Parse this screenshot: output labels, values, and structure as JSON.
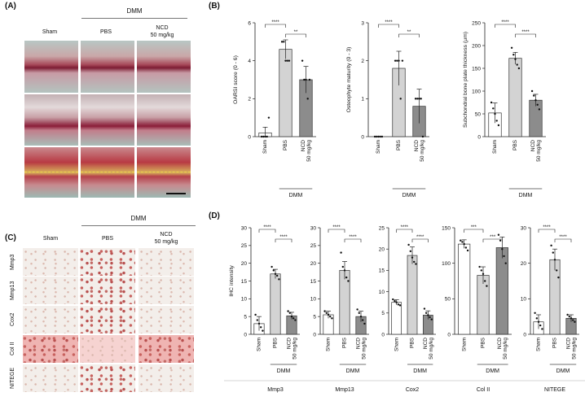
{
  "panels": {
    "A": "(A)",
    "B": "(B)",
    "C": "(C)",
    "D": "(D)"
  },
  "panelA": {
    "group_header": "DMM",
    "columns": [
      "Sham",
      "PBS",
      "NCD\n50 mg/kg"
    ]
  },
  "panelC": {
    "group_header": "DMM",
    "columns": [
      "Sham",
      "PBS",
      "NCD\n50 mg/kg"
    ],
    "rows": [
      "Mmp3",
      "Mmp13",
      "Cox2",
      "Col II",
      "NITEGE"
    ]
  },
  "colors": {
    "sham": "#ffffff",
    "pbs": "#d3d3d3",
    "ncd": "#8c8c8c",
    "stroke": "#333333"
  },
  "chart_data": [
    {
      "id": "oarsi",
      "type": "bar",
      "panel": "B",
      "ylabel": "OARSI score (0 - 6)",
      "ylim": [
        0,
        6
      ],
      "yticks": [
        0,
        2,
        4,
        6
      ],
      "categories": [
        "Sham",
        "PBS",
        "NCD\n50 mg/kg"
      ],
      "values": [
        0.2,
        4.6,
        3.0
      ],
      "errors": [
        0.3,
        0.5,
        0.7
      ],
      "points": [
        [
          0,
          0,
          0,
          0,
          1
        ],
        [
          5,
          5,
          4,
          4,
          4
        ],
        [
          4,
          3,
          3,
          2,
          3
        ]
      ],
      "significance": [
        {
          "from": 0,
          "to": 1,
          "label": "****"
        },
        {
          "from": 1,
          "to": 2,
          "label": "**"
        }
      ],
      "group_label": "DMM"
    },
    {
      "id": "osteophyte",
      "type": "bar",
      "panel": "B",
      "ylabel": "Osteophyte maturity (0 - 3)",
      "ylim": [
        0,
        3
      ],
      "yticks": [
        0,
        1,
        2,
        3
      ],
      "categories": [
        "Sham",
        "PBS",
        "NCD\n50 mg/kg"
      ],
      "values": [
        0,
        1.8,
        0.8
      ],
      "errors": [
        0,
        0.45,
        0.45
      ],
      "points": [
        [
          0,
          0,
          0,
          0,
          0
        ],
        [
          2,
          2,
          2,
          1,
          2
        ],
        [
          1,
          1,
          1,
          1,
          0
        ]
      ],
      "significance": [
        {
          "from": 0,
          "to": 1,
          "label": "****"
        },
        {
          "from": 1,
          "to": 2,
          "label": "**"
        }
      ],
      "group_label": "DMM"
    },
    {
      "id": "subchondral",
      "type": "bar",
      "panel": "B",
      "ylabel": "Subchondral bone plate thickness (μm)",
      "ylim": [
        0,
        250
      ],
      "yticks": [
        0,
        50,
        100,
        150,
        200,
        250
      ],
      "categories": [
        "Sham",
        "PBS",
        "NCD\n50 mg/kg"
      ],
      "values": [
        52,
        172,
        80
      ],
      "errors": [
        22,
        13,
        13
      ],
      "points": [
        [
          75,
          62,
          50,
          35,
          25
        ],
        [
          195,
          180,
          170,
          158,
          150
        ],
        [
          100,
          90,
          80,
          70,
          60
        ]
      ],
      "significance": [
        {
          "from": 0,
          "to": 1,
          "label": "****"
        },
        {
          "from": 1,
          "to": 2,
          "label": "****"
        }
      ],
      "group_label": "DMM"
    },
    {
      "id": "mmp3",
      "type": "bar",
      "panel": "D",
      "ylabel": "IHC intensity",
      "ylim": [
        0,
        30
      ],
      "yticks": [
        0,
        5,
        10,
        15,
        20,
        25,
        30
      ],
      "categories": [
        "Sham",
        "PBS",
        "NCD\n50 mg/kg"
      ],
      "values": [
        3,
        17,
        5.2
      ],
      "errors": [
        2,
        1.3,
        1
      ],
      "points": [
        [
          5.5,
          4,
          3,
          2,
          1
        ],
        [
          19,
          18,
          17,
          16.5,
          15.5
        ],
        [
          6.5,
          6,
          5,
          4.5,
          4
        ]
      ],
      "significance": [
        {
          "from": 0,
          "to": 1,
          "label": "****"
        },
        {
          "from": 1,
          "to": 2,
          "label": "****"
        }
      ],
      "group_label": "DMM",
      "xlabel": "Mmp3"
    },
    {
      "id": "mmp13",
      "type": "bar",
      "panel": "D",
      "ylabel": "",
      "ylim": [
        0,
        30
      ],
      "yticks": [
        0,
        5,
        10,
        15,
        20,
        25,
        30
      ],
      "categories": [
        "Sham",
        "PBS",
        "NCD\n50 mg/kg"
      ],
      "values": [
        5.5,
        18,
        5
      ],
      "errors": [
        1,
        2.5,
        1.5
      ],
      "points": [
        [
          6.5,
          6,
          5.5,
          5,
          4.5
        ],
        [
          23,
          19,
          18,
          16,
          15
        ],
        [
          7,
          6,
          5,
          4,
          3
        ]
      ],
      "significance": [
        {
          "from": 0,
          "to": 1,
          "label": "****"
        },
        {
          "from": 1,
          "to": 2,
          "label": "****"
        }
      ],
      "group_label": "DMM",
      "xlabel": "Mmp13"
    },
    {
      "id": "cox2",
      "type": "bar",
      "panel": "D",
      "ylabel": "",
      "ylim": [
        0,
        25
      ],
      "yticks": [
        0,
        5,
        10,
        15,
        20,
        25
      ],
      "categories": [
        "Sham",
        "PBS",
        "NCD\n50 mg/kg"
      ],
      "values": [
        7.5,
        18.5,
        4.5
      ],
      "errors": [
        0.6,
        2,
        1
      ],
      "points": [
        [
          8.2,
          7.8,
          7.5,
          7,
          6.8
        ],
        [
          21,
          19.5,
          18,
          17,
          16.5
        ],
        [
          6,
          5,
          4.5,
          4,
          3.5
        ]
      ],
      "significance": [
        {
          "from": 0,
          "to": 1,
          "label": "****"
        },
        {
          "from": 1,
          "to": 2,
          "label": "****"
        }
      ],
      "group_label": "DMM",
      "xlabel": "Cox2"
    },
    {
      "id": "col2",
      "type": "bar",
      "panel": "D",
      "ylabel": "",
      "ylim": [
        0,
        150
      ],
      "yticks": [
        0,
        50,
        100,
        150
      ],
      "categories": [
        "Sham",
        "PBS",
        "NCD\n50 mg/kg"
      ],
      "values": [
        127,
        83,
        122
      ],
      "errors": [
        6,
        12,
        15
      ],
      "points": [
        [
          132,
          130,
          127,
          122,
          118
        ],
        [
          95,
          90,
          85,
          75,
          68
        ],
        [
          140,
          132,
          120,
          110,
          100
        ]
      ],
      "significance": [
        {
          "from": 0,
          "to": 1,
          "label": "***"
        },
        {
          "from": 1,
          "to": 2,
          "label": "***"
        }
      ],
      "group_label": "DMM",
      "xlabel": "Col II"
    },
    {
      "id": "nitege",
      "type": "bar",
      "panel": "D",
      "ylabel": "",
      "ylim": [
        0,
        30
      ],
      "yticks": [
        0,
        10,
        20,
        30
      ],
      "categories": [
        "Sham",
        "PBS",
        "NCD\n50 mg/kg"
      ],
      "values": [
        3.5,
        21,
        4.5
      ],
      "errors": [
        2,
        3,
        1
      ],
      "points": [
        [
          6,
          4.5,
          3.5,
          2.5,
          1.5
        ],
        [
          25,
          23,
          21,
          18,
          16
        ],
        [
          5.5,
          5,
          4.5,
          4,
          3.5
        ]
      ],
      "significance": [
        {
          "from": 0,
          "to": 1,
          "label": "****"
        },
        {
          "from": 1,
          "to": 2,
          "label": "****"
        }
      ],
      "group_label": "DMM",
      "xlabel": "NITEGE"
    }
  ]
}
